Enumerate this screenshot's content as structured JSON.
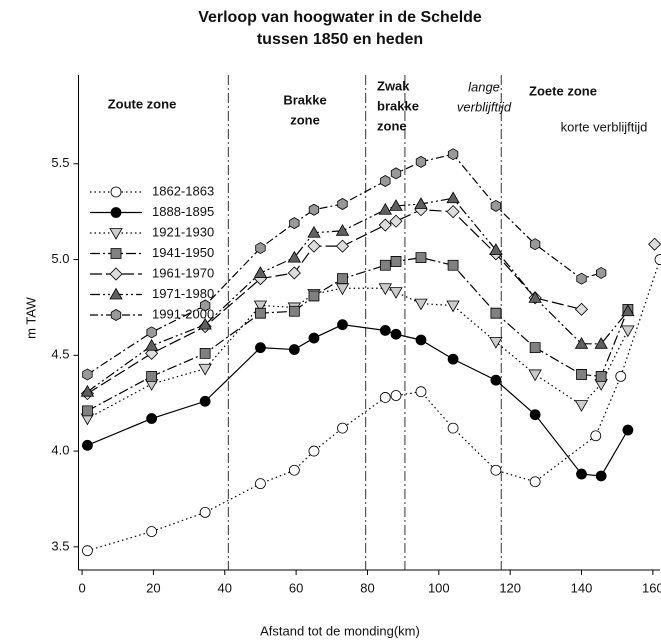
{
  "chart_data": {
    "type": "line",
    "title": [
      "Verloop van hoogwater in de Schelde",
      "tussen 1850 en heden"
    ],
    "xlabel": "Afstand tot de monding(km)",
    "ylabel": "m TAW",
    "xlim": [
      -1,
      162
    ],
    "ylim": [
      3.4,
      6.0
    ],
    "xticks": [
      0,
      20,
      40,
      60,
      80,
      100,
      120,
      140,
      160
    ],
    "yticks": [
      3.5,
      {
        "value": 4,
        "label": "4.0"
      },
      4.5,
      {
        "value": 5,
        "label": "5.0"
      },
      5.5
    ],
    "legend": "upper left",
    "zone_boundaries": [
      41,
      79.5,
      90.5,
      117.5
    ],
    "annotations": [
      {
        "lines": [
          "Zoute zone"
        ],
        "style": "bold"
      },
      {
        "lines": [
          "Brakke",
          "zone"
        ],
        "style": "bold"
      },
      {
        "lines": [
          "Zwak",
          "brakke",
          "zone"
        ],
        "style": "bold"
      },
      {
        "lines": [
          "lange",
          "verblijftijd"
        ],
        "style": "italic"
      },
      {
        "lines": [
          "Zoete zone"
        ],
        "style": "bold"
      },
      {
        "lines": [
          "korte verblijftijd"
        ],
        "style": "normal"
      }
    ],
    "series": [
      {
        "name": "1862-1863",
        "color": "#ffffff",
        "marker": "circle",
        "dash": "1.5 3",
        "x": [
          1.5,
          19.5,
          34.5,
          50,
          59.5,
          65,
          73,
          85,
          88,
          95,
          104,
          116,
          127,
          144,
          151,
          162
        ],
        "values": [
          3.48,
          3.58,
          3.68,
          3.83,
          3.9,
          4.0,
          4.12,
          4.28,
          4.29,
          4.31,
          4.12,
          3.9,
          3.84,
          4.08,
          4.39,
          5.0
        ]
      },
      {
        "name": "1888-1895",
        "color": "#000000",
        "marker": "circle",
        "dash": "",
        "x": [
          1.5,
          19.5,
          34.5,
          50,
          59.5,
          65,
          73,
          85,
          88,
          95,
          104,
          116,
          127,
          140,
          145.5,
          153
        ],
        "values": [
          4.03,
          4.17,
          4.26,
          4.54,
          4.53,
          4.59,
          4.66,
          4.63,
          4.61,
          4.58,
          4.48,
          4.37,
          4.19,
          3.88,
          3.87,
          4.11
        ]
      },
      {
        "name": "1921-1930",
        "color": "#cccccc",
        "marker": "tridown",
        "dash": "1.5 3",
        "x": [
          1.5,
          19.5,
          34.5,
          50,
          59.5,
          65,
          73,
          85,
          88,
          95,
          104,
          116,
          127,
          140,
          145.5,
          153
        ],
        "values": [
          4.17,
          4.35,
          4.43,
          4.76,
          4.75,
          4.82,
          4.85,
          4.85,
          4.83,
          4.77,
          4.76,
          4.57,
          4.4,
          4.24,
          4.35,
          4.63
        ]
      },
      {
        "name": "1941-1950",
        "color": "#808080",
        "marker": "square",
        "dash": "10 3 2 3",
        "x": [
          1.5,
          19.5,
          34.5,
          50,
          59.5,
          65,
          73,
          85,
          88,
          95,
          104,
          116,
          127,
          140,
          145.5,
          153
        ],
        "values": [
          4.21,
          4.39,
          4.51,
          4.72,
          4.73,
          4.81,
          4.9,
          4.97,
          4.99,
          5.01,
          4.97,
          4.72,
          4.54,
          4.4,
          4.39,
          4.74
        ]
      },
      {
        "name": "1961-1970",
        "color": "#dddddd",
        "marker": "diamond",
        "dash": "12 4",
        "x": [
          1.5,
          19.5,
          34.5,
          50,
          59.5,
          65,
          73,
          85,
          88,
          95,
          104,
          116,
          127,
          140,
          150,
          160.5
        ],
        "values": [
          4.3,
          4.51,
          4.65,
          4.9,
          4.93,
          5.07,
          5.07,
          5.18,
          5.2,
          5.26,
          5.25,
          5.03,
          4.8,
          4.74,
          null,
          5.08
        ]
      },
      {
        "name": "1971-1980",
        "color": "#606060",
        "marker": "triup",
        "dash": "10 3 2 3 2 3",
        "x": [
          1.5,
          19.5,
          34.5,
          50,
          59.5,
          65,
          73,
          85,
          88,
          95,
          104,
          116,
          127,
          140,
          145.5,
          153
        ],
        "values": [
          4.31,
          4.55,
          4.66,
          4.93,
          5.01,
          5.14,
          5.15,
          5.26,
          5.28,
          5.29,
          5.32,
          5.05,
          4.8,
          4.56,
          4.56,
          4.73
        ]
      },
      {
        "name": "1991-2000",
        "color": "#999999",
        "marker": "hexagon",
        "dash": "8 3 2 3",
        "x": [
          1.5,
          19.5,
          34.5,
          50,
          59.5,
          65,
          73,
          85,
          88,
          95,
          104,
          116,
          127,
          140,
          145.5
        ],
        "values": [
          4.4,
          4.62,
          4.76,
          5.06,
          5.19,
          5.26,
          5.29,
          5.41,
          5.45,
          5.51,
          5.55,
          5.28,
          5.08,
          4.9,
          4.93
        ]
      }
    ]
  }
}
